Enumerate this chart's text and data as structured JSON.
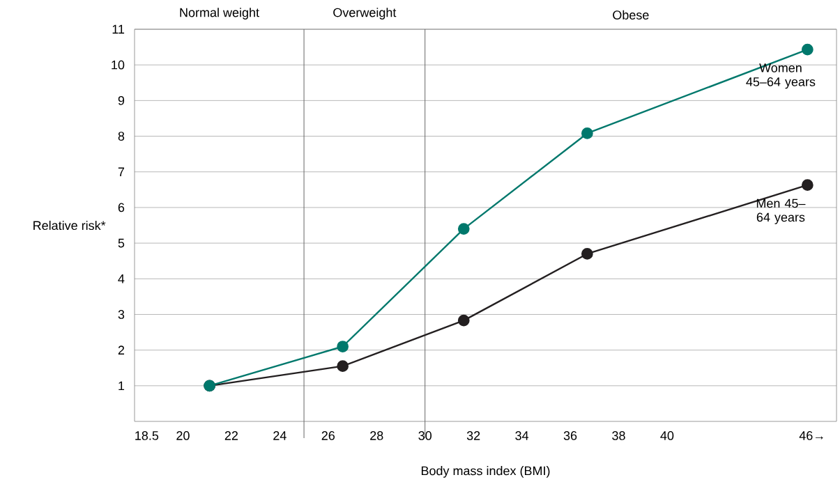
{
  "chart_data": {
    "type": "line",
    "xlabel": "Body mass index (BMI)",
    "ylabel": "Relative risk*",
    "x": [
      21.1,
      26.6,
      31.6,
      36.7,
      45.8
    ],
    "series": [
      {
        "name": "Women 45–64 years",
        "color": "#00786c",
        "values": [
          1,
          2.1,
          5.4,
          8.08,
          10.43
        ]
      },
      {
        "name": "Men 45–64 years",
        "color": "#231f20",
        "values": [
          1,
          1.55,
          2.83,
          4.7,
          6.63
        ]
      }
    ],
    "marker": "circle",
    "line_style": "solid",
    "grid": "y",
    "xlim": [
      18,
      47
    ],
    "xticks": [
      18.5,
      20,
      22,
      24,
      26,
      28,
      30,
      32,
      34,
      36,
      38,
      40,
      {
        "value": 46,
        "label": "46→"
      }
    ],
    "ylim": [
      0,
      11
    ],
    "yticks": [
      1,
      2,
      3,
      4,
      5,
      6,
      7,
      8,
      9,
      10,
      11
    ],
    "ref_lines": [
      {
        "axis": "x",
        "value": 25
      },
      {
        "axis": "x",
        "value": 30
      }
    ],
    "annotations": [
      "Normal weight",
      "Overweight",
      "Obese"
    ]
  }
}
